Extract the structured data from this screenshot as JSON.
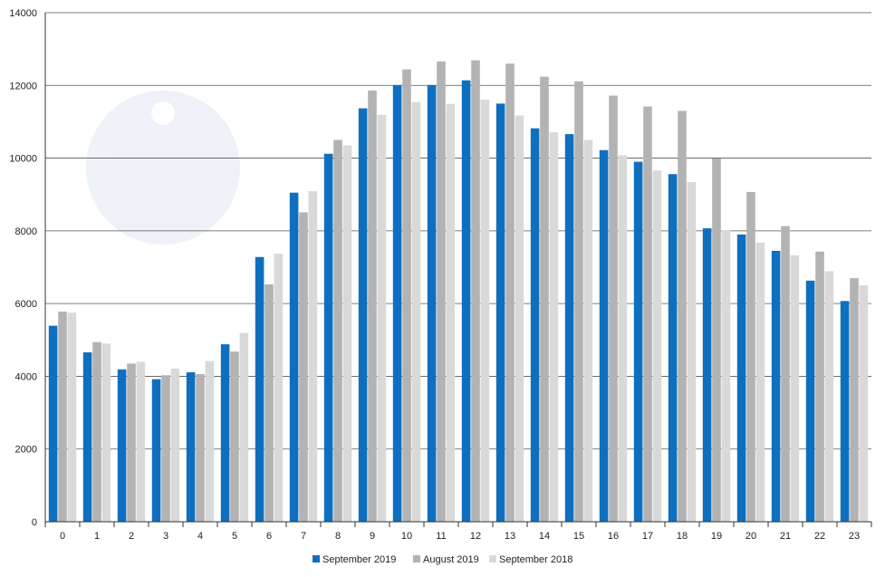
{
  "chart_data": {
    "type": "bar",
    "categories": [
      "0",
      "1",
      "2",
      "3",
      "4",
      "5",
      "6",
      "7",
      "8",
      "9",
      "10",
      "11",
      "12",
      "13",
      "14",
      "15",
      "16",
      "17",
      "18",
      "19",
      "20",
      "21",
      "22",
      "23"
    ],
    "series": [
      {
        "name": "September 2019",
        "color": "#0f6fbf",
        "values": [
          5390,
          4660,
          4190,
          3920,
          4110,
          4880,
          7280,
          9050,
          10120,
          11370,
          12010,
          12010,
          12140,
          11500,
          10820,
          10660,
          10220,
          9900,
          9560,
          8070,
          7900,
          7450,
          6630,
          6070
        ]
      },
      {
        "name": "August 2019",
        "color": "#b3b3b3",
        "values": [
          5780,
          4940,
          4350,
          4030,
          4060,
          4680,
          6530,
          8510,
          10500,
          11860,
          12440,
          12660,
          12690,
          12600,
          12240,
          12110,
          11720,
          11420,
          11300,
          9990,
          9070,
          8130,
          7430,
          6700
        ]
      },
      {
        "name": "September 2018",
        "color": "#d9d9d9",
        "values": [
          5750,
          4900,
          4400,
          4210,
          4420,
          5190,
          7370,
          9090,
          10350,
          11190,
          11540,
          11490,
          11610,
          11170,
          10710,
          10500,
          10080,
          9660,
          9340,
          8020,
          7680,
          7330,
          6890,
          6500
        ]
      }
    ],
    "y_ticks": [
      "0",
      "2000",
      "4000",
      "6000",
      "8000",
      "10000",
      "12000",
      "14000"
    ],
    "ylim": [
      0,
      14000
    ],
    "grid": true,
    "legend_position": "bottom-center",
    "title": "",
    "xlabel": "",
    "ylabel": ""
  }
}
